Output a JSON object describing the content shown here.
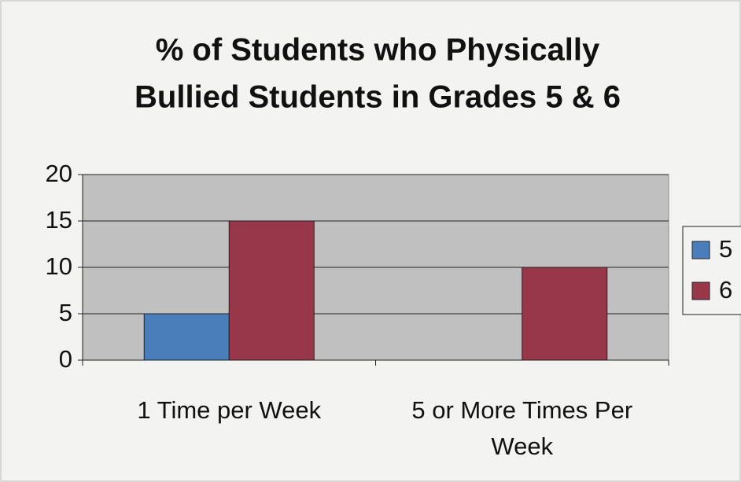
{
  "chart_data": {
    "type": "bar",
    "title": [
      "% of Students who Physically",
      "Bullied Students in Grades 5 & 6"
    ],
    "categories": [
      "1 Time per Week",
      "5 or More Times Per Week"
    ],
    "series": [
      {
        "name": "5",
        "color": "#4a7ebb",
        "values": [
          5,
          0
        ]
      },
      {
        "name": "6",
        "color": "#98374a",
        "values": [
          15,
          10
        ]
      }
    ],
    "ylim": [
      0,
      20
    ],
    "yticks": [
      0,
      5,
      10,
      15,
      20
    ],
    "grid": true,
    "legend": "right"
  }
}
